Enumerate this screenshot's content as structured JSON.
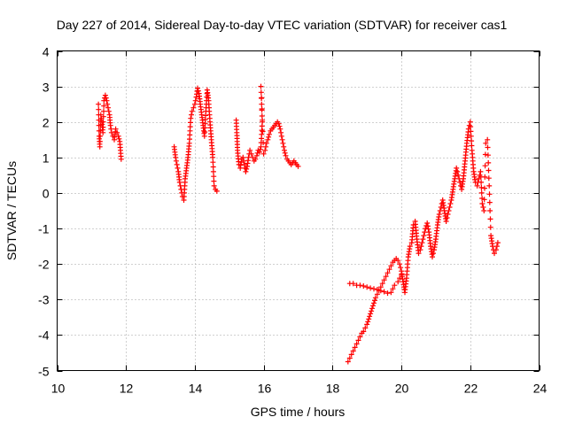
{
  "chart_data": {
    "type": "scatter",
    "title": "Day 227 of 2014, Sidereal Day-to-day VTEC variation (SDTVAR) for receiver cas1",
    "xlabel": "GPS time / hours",
    "ylabel": "SDTVAR / TECUs",
    "xlim": [
      10,
      24
    ],
    "ylim": [
      -5,
      4
    ],
    "xticks": [
      "10",
      "12",
      "14",
      "16",
      "18",
      "20",
      "22",
      "24"
    ],
    "yticks": [
      "-5",
      "-4",
      "-3",
      "-2",
      "-1",
      "0",
      "1",
      "2",
      "3",
      "4"
    ],
    "grid": true,
    "marker": "+",
    "color": "#ff0000",
    "series": [
      {
        "name": "cas1",
        "segments": [
          [
            [
              11.2,
              2.5
            ],
            [
              11.22,
              1.6
            ],
            [
              11.24,
              1.3
            ],
            [
              11.27,
              2.2
            ],
            [
              11.3,
              2.0
            ],
            [
              11.33,
              1.7
            ],
            [
              11.36,
              2.6
            ],
            [
              11.4,
              2.75
            ],
            [
              11.44,
              2.6
            ],
            [
              11.48,
              2.4
            ],
            [
              11.52,
              2.2
            ],
            [
              11.55,
              1.9
            ],
            [
              11.58,
              1.7
            ],
            [
              11.62,
              1.6
            ],
            [
              11.66,
              1.5
            ],
            [
              11.7,
              1.8
            ],
            [
              11.74,
              1.7
            ],
            [
              11.78,
              1.6
            ],
            [
              11.82,
              1.45
            ],
            [
              11.86,
              0.95
            ]
          ],
          [
            [
              13.4,
              1.3
            ],
            [
              13.44,
              1.0
            ],
            [
              13.48,
              0.8
            ],
            [
              13.52,
              0.6
            ],
            [
              13.56,
              0.3
            ],
            [
              13.6,
              0.1
            ],
            [
              13.64,
              -0.1
            ],
            [
              13.68,
              -0.2
            ],
            [
              13.72,
              0.4
            ],
            [
              13.76,
              0.7
            ],
            [
              13.8,
              1.0
            ],
            [
              13.84,
              1.4
            ],
            [
              13.88,
              2.1
            ],
            [
              13.92,
              2.3
            ],
            [
              13.96,
              2.4
            ],
            [
              14.0,
              2.5
            ],
            [
              14.04,
              2.7
            ],
            [
              14.08,
              2.95
            ],
            [
              14.12,
              2.8
            ],
            [
              14.16,
              2.5
            ],
            [
              14.2,
              2.2
            ],
            [
              14.24,
              1.9
            ],
            [
              14.28,
              1.6
            ],
            [
              14.32,
              2.3
            ],
            [
              14.36,
              2.9
            ],
            [
              14.4,
              2.6
            ],
            [
              14.44,
              2.0
            ],
            [
              14.48,
              1.5
            ],
            [
              14.52,
              1.0
            ],
            [
              14.56,
              0.2
            ],
            [
              14.6,
              0.1
            ],
            [
              14.64,
              0.05
            ]
          ],
          [
            [
              15.2,
              2.05
            ],
            [
              15.22,
              1.7
            ],
            [
              15.24,
              1.2
            ],
            [
              15.28,
              0.8
            ],
            [
              15.32,
              0.7
            ],
            [
              15.36,
              0.95
            ],
            [
              15.4,
              1.0
            ],
            [
              15.44,
              0.8
            ],
            [
              15.48,
              0.6
            ],
            [
              15.52,
              0.75
            ],
            [
              15.56,
              1.0
            ],
            [
              15.6,
              1.2
            ],
            [
              15.64,
              1.1
            ],
            [
              15.68,
              1.0
            ],
            [
              15.72,
              0.9
            ],
            [
              15.76,
              0.95
            ],
            [
              15.8,
              1.05
            ],
            [
              15.84,
              1.2
            ],
            [
              15.88,
              1.15
            ],
            [
              15.92,
              1.3
            ],
            [
              15.96,
              2.0
            ],
            [
              15.92,
              3.0
            ],
            [
              16.0,
              1.1
            ],
            [
              16.04,
              1.2
            ],
            [
              16.08,
              1.4
            ],
            [
              16.12,
              1.5
            ],
            [
              16.16,
              1.65
            ],
            [
              16.2,
              1.75
            ],
            [
              16.24,
              1.8
            ],
            [
              16.28,
              1.85
            ],
            [
              16.32,
              1.9
            ],
            [
              16.36,
              1.95
            ],
            [
              16.4,
              2.0
            ],
            [
              16.44,
              1.95
            ],
            [
              16.48,
              1.8
            ],
            [
              16.52,
              1.6
            ],
            [
              16.56,
              1.4
            ],
            [
              16.6,
              1.2
            ],
            [
              16.64,
              1.05
            ],
            [
              16.68,
              0.95
            ],
            [
              16.72,
              0.9
            ],
            [
              16.76,
              0.85
            ],
            [
              16.8,
              0.8
            ],
            [
              16.84,
              0.85
            ],
            [
              16.88,
              0.9
            ],
            [
              16.92,
              0.85
            ],
            [
              16.96,
              0.8
            ],
            [
              17.0,
              0.75
            ]
          ],
          [
            [
              18.45,
              -4.75
            ],
            [
              18.5,
              -4.65
            ],
            [
              18.55,
              -4.55
            ],
            [
              18.6,
              -4.45
            ],
            [
              18.65,
              -4.35
            ],
            [
              18.7,
              -4.25
            ],
            [
              18.75,
              -4.15
            ],
            [
              18.8,
              -4.05
            ],
            [
              18.85,
              -3.95
            ],
            [
              18.9,
              -3.9
            ],
            [
              18.95,
              -3.8
            ],
            [
              19.0,
              -3.7
            ],
            [
              19.05,
              -3.55
            ],
            [
              19.1,
              -3.4
            ],
            [
              19.15,
              -3.25
            ],
            [
              19.2,
              -3.1
            ],
            [
              19.25,
              -2.95
            ],
            [
              19.3,
              -2.85
            ],
            [
              19.35,
              -2.75
            ],
            [
              19.4,
              -2.65
            ],
            [
              19.45,
              -2.55
            ],
            [
              19.5,
              -2.45
            ],
            [
              19.55,
              -2.35
            ],
            [
              19.6,
              -2.25
            ],
            [
              19.65,
              -2.15
            ],
            [
              19.7,
              -2.05
            ],
            [
              19.75,
              -1.95
            ],
            [
              19.8,
              -1.9
            ],
            [
              19.85,
              -1.85
            ],
            [
              19.9,
              -1.9
            ],
            [
              19.95,
              -2.0
            ],
            [
              20.0,
              -2.2
            ],
            [
              20.05,
              -2.5
            ],
            [
              20.1,
              -2.8
            ],
            [
              20.15,
              -2.4
            ],
            [
              20.2,
              -1.8
            ],
            [
              20.25,
              -1.5
            ],
            [
              20.3,
              -1.4
            ],
            [
              20.35,
              -0.9
            ],
            [
              20.4,
              -0.8
            ],
            [
              20.45,
              -1.3
            ],
            [
              20.5,
              -1.7
            ],
            [
              20.55,
              -1.6
            ],
            [
              20.6,
              -1.4
            ],
            [
              20.65,
              -1.2
            ],
            [
              20.7,
              -1.0
            ],
            [
              20.75,
              -0.85
            ],
            [
              20.8,
              -1.1
            ],
            [
              20.85,
              -1.5
            ],
            [
              20.9,
              -1.8
            ],
            [
              20.95,
              -1.6
            ],
            [
              21.0,
              -1.3
            ],
            [
              21.05,
              -0.9
            ],
            [
              21.1,
              -0.6
            ],
            [
              21.15,
              -0.4
            ],
            [
              21.2,
              -0.2
            ],
            [
              21.25,
              -0.5
            ],
            [
              21.3,
              -0.8
            ],
            [
              21.35,
              -0.6
            ],
            [
              21.4,
              -0.4
            ],
            [
              21.45,
              -0.2
            ],
            [
              21.5,
              0.1
            ],
            [
              21.55,
              0.4
            ],
            [
              21.6,
              0.7
            ],
            [
              21.65,
              0.5
            ],
            [
              21.7,
              0.3
            ],
            [
              21.75,
              0.1
            ],
            [
              21.8,
              0.4
            ],
            [
              21.85,
              0.9
            ],
            [
              21.9,
              1.4
            ],
            [
              21.95,
              1.8
            ],
            [
              22.0,
              2.0
            ],
            [
              22.05,
              1.2
            ],
            [
              22.1,
              0.6
            ],
            [
              22.15,
              0.3
            ],
            [
              22.2,
              0.2
            ],
            [
              22.25,
              0.4
            ],
            [
              22.3,
              0.6
            ],
            [
              22.35,
              -0.3
            ],
            [
              22.4,
              -0.5
            ],
            [
              22.45,
              1.4
            ],
            [
              22.5,
              1.5
            ],
            [
              22.55,
              0.2
            ],
            [
              22.6,
              -1.2
            ],
            [
              22.65,
              -1.5
            ],
            [
              22.7,
              -1.7
            ],
            [
              22.75,
              -1.6
            ],
            [
              22.8,
              -1.4
            ]
          ],
          [
            [
              18.5,
              -2.55
            ],
            [
              18.6,
              -2.55
            ],
            [
              18.7,
              -2.6
            ],
            [
              18.8,
              -2.6
            ],
            [
              18.9,
              -2.62
            ],
            [
              19.0,
              -2.65
            ],
            [
              19.1,
              -2.68
            ],
            [
              19.2,
              -2.7
            ],
            [
              19.3,
              -2.72
            ],
            [
              19.4,
              -2.75
            ],
            [
              19.5,
              -2.78
            ],
            [
              19.6,
              -2.82
            ],
            [
              19.7,
              -2.8
            ],
            [
              19.8,
              -2.6
            ],
            [
              19.9,
              -2.5
            ],
            [
              20.0,
              -2.3
            ]
          ]
        ]
      }
    ]
  }
}
